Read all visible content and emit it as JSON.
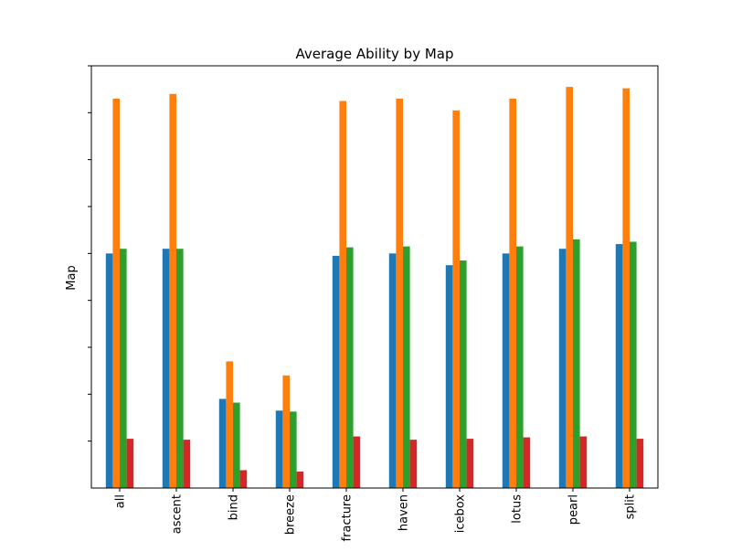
{
  "chart_data": {
    "type": "bar",
    "title": "Average Ability by Map",
    "xlabel": "",
    "ylabel": "Map",
    "ylim": [
      0,
      9
    ],
    "y_tick_labels_visible": false,
    "grid": false,
    "legend": "none",
    "categories": [
      "all",
      "ascent",
      "bind",
      "breeze",
      "fracture",
      "haven",
      "icebox",
      "lotus",
      "pearl",
      "split"
    ],
    "series": [
      {
        "color": "#1f77b4",
        "values": [
          5.0,
          5.1,
          1.9,
          1.65,
          4.95,
          5.0,
          4.75,
          5.0,
          5.1,
          5.2
        ]
      },
      {
        "color": "#ff7f0e",
        "values": [
          8.3,
          8.4,
          2.7,
          2.4,
          8.25,
          8.3,
          8.05,
          8.3,
          8.55,
          8.52
        ]
      },
      {
        "color": "#2ca02c",
        "values": [
          5.1,
          5.1,
          1.82,
          1.63,
          5.13,
          5.15,
          4.85,
          5.15,
          5.3,
          5.25
        ]
      },
      {
        "color": "#d62728",
        "values": [
          1.05,
          1.03,
          0.38,
          0.35,
          1.1,
          1.03,
          1.05,
          1.08,
          1.1,
          1.05
        ]
      }
    ]
  }
}
